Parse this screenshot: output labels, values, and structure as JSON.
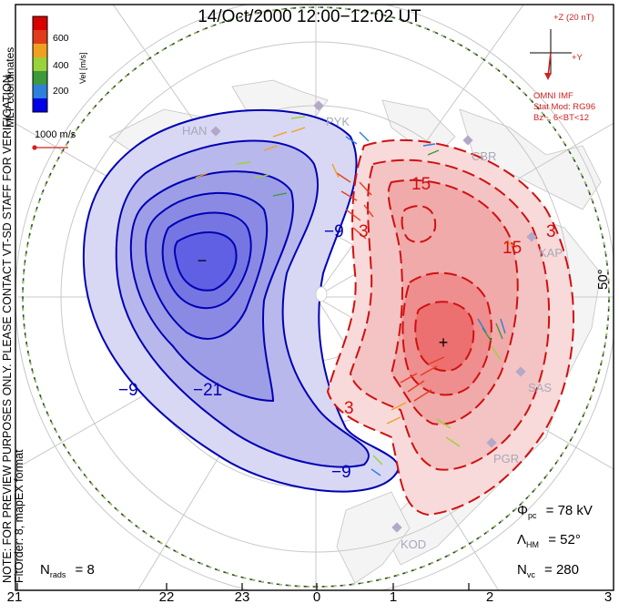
{
  "title": "14/Oct/2000 12:00−12:02 UT",
  "side_note": {
    "line1": "NOTE: FOR PREVIEW PURPOSES ONLY. PLEASE CONTACT VT-SD STAFF FOR VERIFICATION.",
    "line2": "FitOrder: 8, mapEX format",
    "line3": "MLT coordinates"
  },
  "colorbar": {
    "title": "Vel [m/s]",
    "ticks": [
      "600",
      "400",
      "200"
    ],
    "colors": [
      "#0000e6",
      "#2f7fdc",
      "#3c9a3c",
      "#9ad23c",
      "#f0a020",
      "#e03c1c",
      "#d80000"
    ]
  },
  "vector_scale": {
    "label": "1000 m/s",
    "color": "#d22020"
  },
  "imf": {
    "label": "+Z (20 nT)",
    "y_label": "+Y",
    "source": "OMNI IMF",
    "model_line1": "Stat Mod: RG96",
    "model_line2": "Bz−, 6<BT<12",
    "color": "#d22020"
  },
  "stations": [
    "HAN",
    "PYK",
    "CBR",
    "KAP",
    "SAS",
    "PGR",
    "KOD"
  ],
  "latitude_label": "50°",
  "mlt_labels": [
    "21",
    "22",
    "23",
    "0",
    "1",
    "2",
    "3"
  ],
  "contour_labels": {
    "neg": [
      "−9",
      "−21",
      "−9",
      "−9"
    ],
    "pos": [
      "15",
      "3",
      "15",
      "3",
      "3"
    ]
  },
  "stats": {
    "phi_symbol": "Φ",
    "phi_sub": "pc",
    "phi_value": "= 78 kV",
    "lambda_symbol": "Λ",
    "lambda_sub": "HM",
    "lambda_value": "= 52°",
    "nvc_symbol": "N",
    "nvc_sub": "vc",
    "nvc_value": "= 280",
    "nrads_symbol": "N",
    "nrads_sub": "rads",
    "nrads_value": "= 8"
  },
  "potential_minimum_marker": "−",
  "potential_maximum_marker": "+"
}
